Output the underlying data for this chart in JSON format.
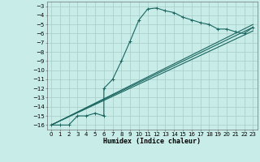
{
  "xlabel": "Humidex (Indice chaleur)",
  "bg_color": "#c8ece8",
  "grid_color": "#a8ccc8",
  "line_color": "#1a6660",
  "xlim": [
    -0.5,
    23.5
  ],
  "ylim": [
    -16.5,
    -2.5
  ],
  "xticks": [
    0,
    1,
    2,
    3,
    4,
    5,
    6,
    7,
    8,
    9,
    10,
    11,
    12,
    13,
    14,
    15,
    16,
    17,
    18,
    19,
    20,
    21,
    22,
    23
  ],
  "yticks": [
    -3,
    -4,
    -5,
    -6,
    -7,
    -8,
    -9,
    -10,
    -11,
    -12,
    -13,
    -14,
    -15,
    -16
  ],
  "curve1_x": [
    0,
    1,
    2,
    3,
    4,
    5,
    6,
    6,
    7,
    8,
    9,
    10,
    11,
    12,
    13,
    14,
    15,
    16,
    17,
    18,
    19,
    20,
    21,
    22,
    23
  ],
  "curve1_y": [
    -16,
    -16,
    -16,
    -15,
    -15,
    -14.7,
    -15,
    -12,
    -11,
    -9,
    -6.8,
    -4.5,
    -3.3,
    -3.2,
    -3.5,
    -3.7,
    -4.2,
    -4.5,
    -4.8,
    -5,
    -5.5,
    -5.5,
    -5.8,
    -6,
    -5.3
  ],
  "curve2_x": [
    0,
    23
  ],
  "curve2_y": [
    -16,
    -5.3
  ],
  "curve3_x": [
    0,
    23
  ],
  "curve3_y": [
    -16,
    -5.0
  ],
  "curve4_x": [
    0,
    23
  ],
  "curve4_y": [
    -16,
    -5.7
  ],
  "marker": "+",
  "markersize": 3,
  "linewidth": 0.8,
  "tick_fontsize": 5.0,
  "xlabel_fontsize": 6.0
}
